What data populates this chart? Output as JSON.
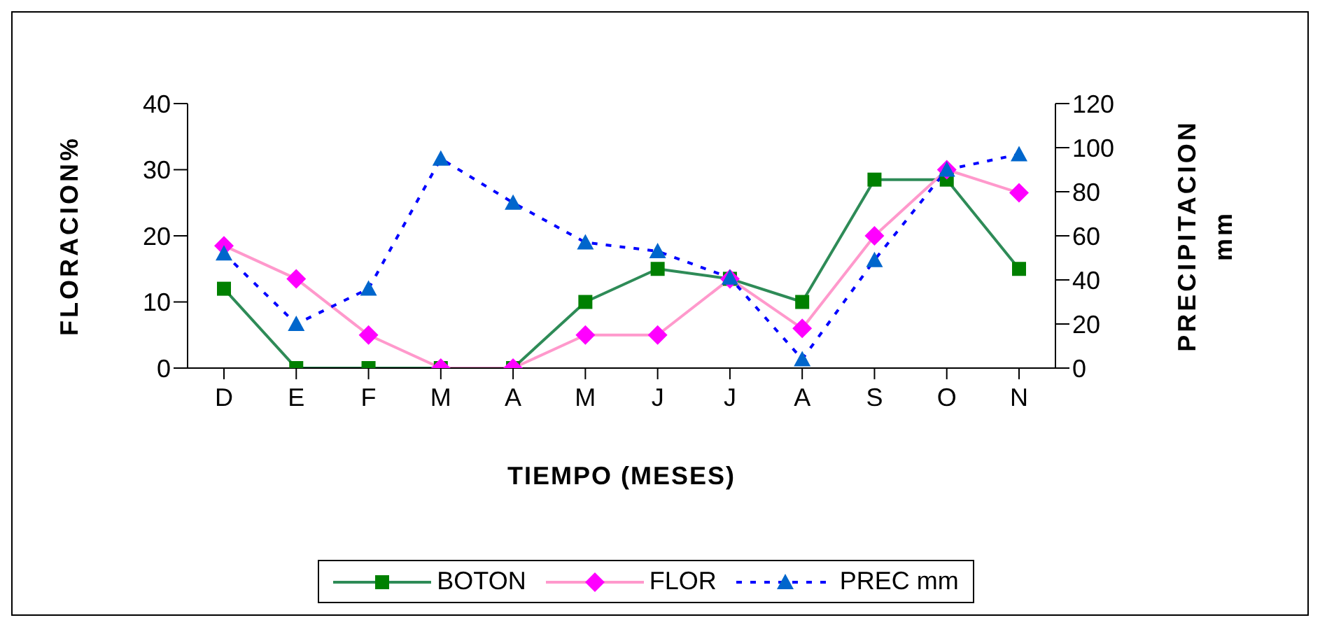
{
  "chart_data": {
    "type": "line",
    "xlabel": "TIEMPO (MESES)",
    "ylabel": "FLORACION%",
    "y2label": "PRECIPITACION mm",
    "categories": [
      "D",
      "E",
      "F",
      "M",
      "A",
      "M",
      "J",
      "J",
      "A",
      "S",
      "O",
      "N"
    ],
    "series": [
      {
        "name": "BOTON",
        "color": "#2e8b57",
        "marker": "square",
        "line_style": "solid",
        "values": [
          12,
          0,
          0,
          0,
          0,
          10,
          15,
          13.5,
          10,
          28.5,
          28.5,
          15
        ]
      },
      {
        "name": "FLOR",
        "color": "#ff99cc",
        "marker": "diamond",
        "line_style": "solid",
        "values": [
          18.5,
          13.5,
          5,
          0,
          0,
          5,
          5,
          13.5,
          6,
          20,
          30,
          26.5
        ]
      },
      {
        "name": "PREC mm",
        "color": "#0000ff",
        "marker": "triangle",
        "line_style": "dashed",
        "axis": "y2",
        "values": [
          52,
          20,
          36,
          95,
          75,
          57,
          53,
          41,
          4,
          49,
          90,
          97
        ]
      }
    ],
    "ylim": [
      0,
      40
    ],
    "yticks": [
      0,
      10,
      20,
      30,
      40
    ],
    "y2lim": [
      0,
      120
    ],
    "y2ticks": [
      0,
      20,
      40,
      60,
      80,
      100,
      120
    ],
    "legend": "bottom"
  }
}
